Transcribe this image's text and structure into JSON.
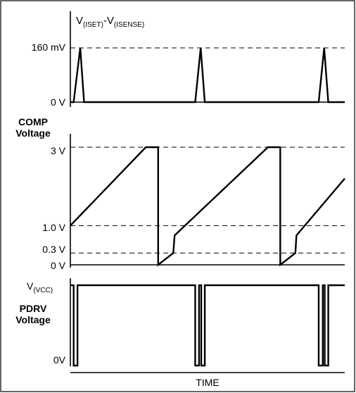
{
  "chart_data": [
    {
      "type": "line",
      "title": "V(ISET)-V(ISENSE)",
      "title_parts": [
        [
          "V",
          ""
        ],
        [
          "(ISET)",
          "sub"
        ],
        [
          "-V",
          ""
        ],
        [
          "(ISENSE)",
          "sub"
        ]
      ],
      "xlabel": "",
      "ylabel": "",
      "y_ticks": [
        "160 mV",
        "0 V"
      ],
      "reference_lines": [
        "160 mV"
      ],
      "series": [
        {
          "values": [
            [
              0,
              0
            ],
            [
              1.2,
              0
            ],
            [
              3.6,
              160
            ],
            [
              5,
              0
            ],
            [
              45.5,
              0
            ],
            [
              47.5,
              160
            ],
            [
              49,
              0
            ],
            [
              90.5,
              0
            ],
            [
              92.5,
              160
            ],
            [
              94,
              0
            ],
            [
              100,
              0
            ]
          ]
        }
      ],
      "grid": false
    },
    {
      "type": "line",
      "title": "",
      "ylabel": "COMP Voltage",
      "ylabel_lines": [
        "COMP",
        "Voltage"
      ],
      "y_ticks": [
        "3 V",
        "1.0 V",
        "0.3 V",
        "0 V"
      ],
      "reference_lines": [
        "3 V",
        "1.0 V",
        "0.3 V"
      ],
      "series": [
        {
          "values": [
            [
              0,
              1.0
            ],
            [
              27.5,
              3.0
            ],
            [
              32,
              3.0
            ],
            [
              32,
              0.0
            ],
            [
              37.5,
              0.3
            ],
            [
              38,
              0.75
            ],
            [
              72,
              3.0
            ],
            [
              76.5,
              3.0
            ],
            [
              76.5,
              0.0
            ],
            [
              82,
              0.3
            ],
            [
              82.4,
              0.75
            ],
            [
              100,
              2.2
            ]
          ]
        }
      ],
      "grid": false
    },
    {
      "type": "line",
      "title": "",
      "ylabel": "PDRV Voltage",
      "ylabel_lines": [
        "PDRV",
        "Voltage"
      ],
      "y_tick_parts": [
        [
          "V",
          ""
        ],
        [
          "(VCC)",
          "sub"
        ]
      ],
      "y_ticks": [
        "V(VCC)",
        "0V"
      ],
      "xlabel": "TIME",
      "series": [
        {
          "values": [
            [
              0,
              1
            ],
            [
              1.2,
              1
            ],
            [
              1.2,
              0
            ],
            [
              2.6,
              0
            ],
            [
              2.6,
              1
            ],
            [
              45.5,
              1
            ],
            [
              45.5,
              0
            ],
            [
              46.9,
              0
            ],
            [
              46.9,
              1
            ],
            [
              47.7,
              1
            ],
            [
              47.7,
              0
            ],
            [
              49,
              0
            ],
            [
              49,
              1
            ],
            [
              90.5,
              1
            ],
            [
              90.5,
              0
            ],
            [
              92,
              0
            ],
            [
              92,
              1
            ],
            [
              92.7,
              1
            ],
            [
              92.7,
              0
            ],
            [
              94,
              0
            ],
            [
              94,
              1
            ],
            [
              100,
              1
            ]
          ]
        }
      ],
      "grid": false
    }
  ]
}
